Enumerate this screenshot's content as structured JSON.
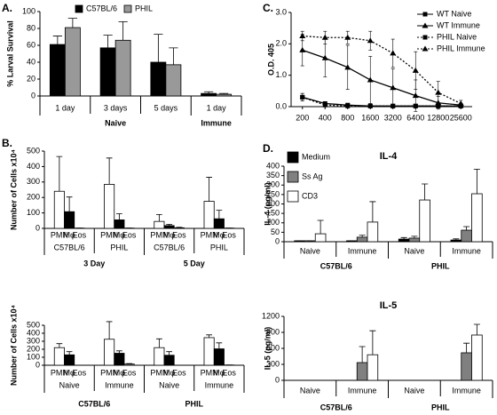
{
  "chart_data": [
    {
      "type": "bar",
      "panel": "A.",
      "ylabel": "% Larval Survival",
      "ylim": [
        0,
        100
      ],
      "yticks": [
        0,
        20,
        40,
        60,
        80,
        100
      ],
      "legend": "top",
      "groups": [
        {
          "name": "Naive",
          "categories": [
            "1 day",
            "3 days",
            "5 days"
          ]
        },
        {
          "name": "Immune",
          "categories": [
            "1 day"
          ]
        }
      ],
      "series": [
        {
          "name": "C57BL/6",
          "color": "#000000",
          "values": [
            61,
            57,
            40,
            3
          ],
          "errors": [
            10,
            15,
            33,
            2
          ]
        },
        {
          "name": "PHIL",
          "color": "#999999",
          "values": [
            81,
            66,
            37,
            2
          ],
          "errors": [
            11,
            22,
            20,
            1
          ]
        }
      ]
    },
    {
      "type": "bar",
      "panel": "B.",
      "ylabel": "Number of Cells x10⁴",
      "ylim": [
        0,
        500
      ],
      "yticks": [
        0,
        100,
        200,
        300,
        400,
        500
      ],
      "bar_labels": true,
      "groups": [
        {
          "name": "3 Day",
          "categories": [
            "C57BL/6",
            "PHIL"
          ]
        },
        {
          "name": "5 Day",
          "categories": [
            "C57BL/6",
            "PHIL"
          ]
        }
      ],
      "series": [
        {
          "name": "PMN",
          "color": "#ffffff",
          "values": [
            240,
            285,
            45,
            175
          ],
          "errors": [
            225,
            170,
            45,
            155
          ]
        },
        {
          "name": "Mφ",
          "color": "#000000",
          "values": [
            108,
            55,
            18,
            62
          ],
          "errors": [
            95,
            40,
            8,
            55
          ]
        },
        {
          "name": "Eos",
          "color": "#999999",
          "values": [
            2,
            2,
            4,
            2
          ],
          "errors": [
            0,
            0,
            3,
            0
          ]
        }
      ]
    },
    {
      "type": "bar",
      "ylabel": "Number of Cells x10⁴",
      "ylim": [
        0,
        500
      ],
      "yticks": [
        0,
        100,
        200,
        300,
        400,
        500
      ],
      "bar_labels": true,
      "groups": [
        {
          "name": "C57BL/6",
          "categories": [
            "Naive",
            "Immune"
          ]
        },
        {
          "name": "PHIL",
          "categories": [
            "Naive",
            "Immune"
          ]
        }
      ],
      "series": [
        {
          "name": "PMN",
          "color": "#ffffff",
          "values": [
            220,
            325,
            220,
            345
          ],
          "errors": [
            50,
            220,
            110,
            35
          ]
        },
        {
          "name": "Mφ",
          "color": "#000000",
          "values": [
            130,
            150,
            125,
            205
          ],
          "errors": [
            40,
            30,
            45,
            75
          ]
        },
        {
          "name": "Eos",
          "color": "#999999",
          "values": [
            0,
            15,
            0,
            3
          ],
          "errors": [
            0,
            5,
            0,
            0
          ]
        }
      ]
    },
    {
      "type": "line",
      "panel": "C.",
      "ylabel": "O.D. 405",
      "ylim": [
        0,
        3
      ],
      "yticks": [
        {
          "value": 0,
          "label": "0.0"
        },
        {
          "value": 1,
          "label": "1.0"
        },
        {
          "value": 2,
          "label": "2.0"
        },
        {
          "value": 3,
          "label": "3.0"
        }
      ],
      "legend": "upper right",
      "categories": [
        "200",
        "400",
        "800",
        "1600",
        "3200",
        "6400",
        "12800",
        "25600"
      ],
      "series": [
        {
          "name": "WT Naive",
          "color": "#000000",
          "marker": "square",
          "dash": false,
          "values": [
            0.3,
            0.1,
            0.05,
            0.02,
            0.02,
            0.02,
            0.02,
            0.02
          ],
          "errors": [
            0.12,
            0.05,
            0.03,
            0.02,
            0.02,
            0.02,
            0.02,
            0.02
          ]
        },
        {
          "name": "WT Immune",
          "color": "#000000",
          "marker": "triangle",
          "dash": false,
          "values": [
            1.8,
            1.55,
            1.25,
            0.85,
            0.6,
            0.35,
            0.12,
            0.05
          ],
          "errors": [
            0.5,
            0.6,
            0.7,
            0.75,
            0.6,
            0.5,
            0.2,
            0.05
          ]
        },
        {
          "name": "PHIL Naive",
          "color": "#000000",
          "marker": "square",
          "dash": true,
          "values": [
            0.3,
            0.05,
            0.02,
            0.02,
            0.02,
            0.02,
            0.02,
            0.02
          ],
          "errors": [
            0.12,
            0.05,
            0.02,
            0.02,
            0.02,
            0.02,
            0.02,
            0.02
          ]
        },
        {
          "name": "PHIL Immune",
          "color": "#000000",
          "marker": "triangle",
          "dash": true,
          "values": [
            2.25,
            2.2,
            2.2,
            2.1,
            1.7,
            1.15,
            0.45,
            0.1
          ],
          "errors": [
            0.15,
            0.2,
            0.2,
            0.3,
            0.45,
            0.6,
            0.35,
            0.1
          ]
        }
      ]
    },
    {
      "type": "bar",
      "panel": "D.",
      "title": "IL-4",
      "ylabel": "IL-4 (pg/ml)",
      "ylim": [
        0,
        400
      ],
      "yticks": [
        0,
        50,
        100,
        150,
        200,
        250,
        300,
        350,
        400
      ],
      "legend": "upper left",
      "groups": [
        {
          "name": "C57BL/6",
          "categories": [
            "Naive",
            "Immune"
          ]
        },
        {
          "name": "PHIL",
          "categories": [
            "Naive",
            "Immune"
          ]
        }
      ],
      "series": [
        {
          "name": "Medium",
          "color": "#000000",
          "values": [
            5,
            5,
            14,
            9
          ],
          "errors": [
            0,
            0,
            8,
            6
          ]
        },
        {
          "name": "Ss Ag",
          "color": "#808080",
          "values": [
            5,
            24,
            19,
            61
          ],
          "errors": [
            0,
            10,
            10,
            19
          ]
        },
        {
          "name": "CD3",
          "color": "#ffffff",
          "values": [
            42,
            104,
            221,
            254
          ],
          "errors": [
            71,
            108,
            85,
            130
          ]
        }
      ]
    },
    {
      "type": "bar",
      "title": "IL-5",
      "ylabel": "IL-5 (pg/ml)",
      "ylim": [
        0,
        1200
      ],
      "yticks": [
        0,
        300,
        600,
        900,
        1200
      ],
      "groups": [
        {
          "name": "C57BL/6",
          "categories": [
            "Naive",
            "Immune"
          ]
        },
        {
          "name": "PHIL",
          "categories": [
            "Naive",
            "Immune"
          ]
        }
      ],
      "series": [
        {
          "color": "#000000",
          "values": [
            0,
            0,
            0,
            0
          ]
        },
        {
          "color": "#808080",
          "values": [
            0,
            333,
            0,
            517
          ],
          "errors": [
            0,
            300,
            0,
            180
          ]
        },
        {
          "color": "#ffffff",
          "values": [
            0,
            480,
            0,
            850
          ],
          "errors": [
            0,
            450,
            0,
            200
          ]
        }
      ]
    }
  ]
}
